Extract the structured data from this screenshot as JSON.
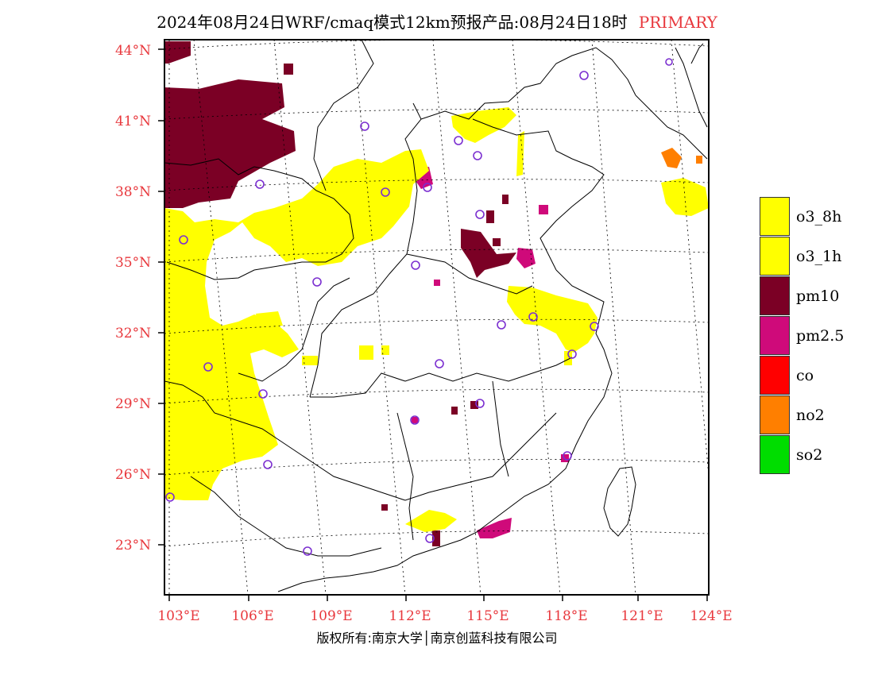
{
  "title": {
    "main": "2024年08月24日WRF/cmaq模式12km预报产品:08月24日18时",
    "tag": "PRIMARY"
  },
  "colors": {
    "o3_8h": "#ffff00",
    "o3_1h": "#ffff00",
    "pm10": "#7b0025",
    "pm2_5": "#cf0a7a",
    "co": "#ff0000",
    "no2": "#ff7f00",
    "so2": "#00dd00",
    "axis_label": "#e8383d",
    "station": "#7b2fd0"
  },
  "axes": {
    "latitude": [
      "44°N",
      "41°N",
      "38°N",
      "35°N",
      "32°N",
      "29°N",
      "26°N",
      "23°N"
    ],
    "longitude": [
      "103°E",
      "106°E",
      "109°E",
      "112°E",
      "115°E",
      "118°E",
      "121°E",
      "124°E"
    ]
  },
  "legend": [
    {
      "label": "o3_8h",
      "color": "#ffff00"
    },
    {
      "label": "o3_1h",
      "color": "#ffff00"
    },
    {
      "label": "pm10",
      "color": "#7b0025"
    },
    {
      "label": "pm2.5",
      "color": "#cf0a7a"
    },
    {
      "label": "co",
      "color": "#ff0000"
    },
    {
      "label": "no2",
      "color": "#ff7f00"
    },
    {
      "label": "so2",
      "color": "#00dd00"
    }
  ],
  "footer": "版权所有:南京大学│南京创蓝科技有限公司"
}
